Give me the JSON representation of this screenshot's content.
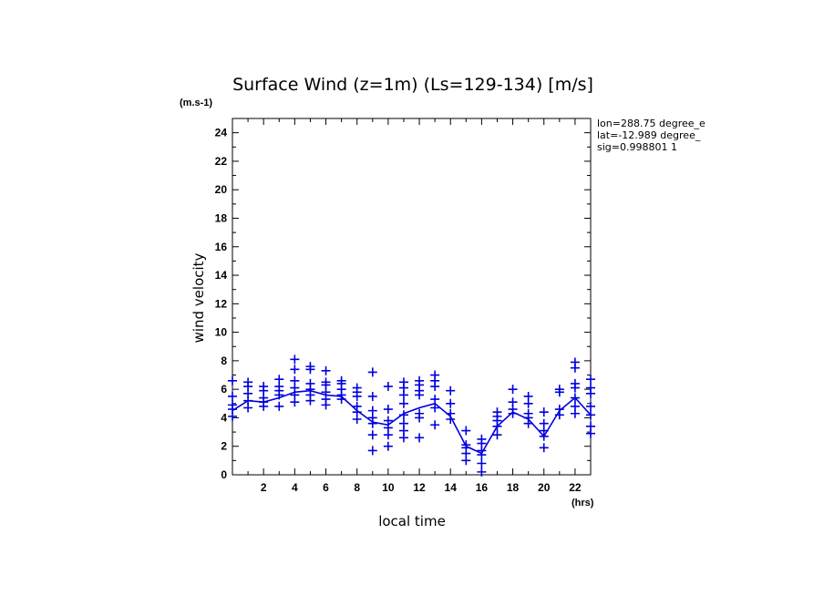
{
  "chart_data": {
    "type": "scatter",
    "title": "Surface Wind (z=1m) (Ls=129-134) [m/s]",
    "y_unit": "(m.s-1)",
    "x_unit": "(hrs)",
    "xlabel": "local time",
    "ylabel": "wind velocity",
    "xlim": [
      0,
      23
    ],
    "ylim": [
      0,
      25
    ],
    "x_ticks": [
      2,
      4,
      6,
      8,
      10,
      12,
      14,
      16,
      18,
      20,
      22
    ],
    "y_ticks": [
      0,
      2,
      4,
      6,
      8,
      10,
      12,
      14,
      16,
      18,
      20,
      22,
      24
    ],
    "info": [
      "lon=288.75 degree_e",
      "lat=-12.989 degree_",
      "sig=0.998801 1"
    ],
    "color": "#0000dd",
    "mean": [
      [
        0,
        4.5
      ],
      [
        1,
        5.2
      ],
      [
        2,
        5.1
      ],
      [
        3,
        5.4
      ],
      [
        4,
        5.8
      ],
      [
        5,
        5.9
      ],
      [
        6,
        5.6
      ],
      [
        7,
        5.5
      ],
      [
        8,
        4.5
      ],
      [
        9,
        3.7
      ],
      [
        10,
        3.5
      ],
      [
        11,
        4.3
      ],
      [
        12,
        4.7
      ],
      [
        13,
        5.0
      ],
      [
        14,
        4.1
      ],
      [
        15,
        2.0
      ],
      [
        16,
        1.5
      ],
      [
        17,
        3.4
      ],
      [
        18,
        4.4
      ],
      [
        19,
        3.9
      ],
      [
        20,
        2.7
      ],
      [
        21,
        4.5
      ],
      [
        22,
        5.4
      ],
      [
        23,
        4.2
      ]
    ],
    "points": [
      [
        0,
        [
          4.1,
          4.6,
          4.9,
          5.5,
          6.6
        ]
      ],
      [
        1,
        [
          4.7,
          5.2,
          5.7,
          6.2,
          6.5
        ]
      ],
      [
        2,
        [
          4.8,
          5.1,
          5.4,
          5.9,
          6.2
        ]
      ],
      [
        3,
        [
          4.8,
          5.6,
          5.9,
          6.2,
          6.7
        ]
      ],
      [
        4,
        [
          5.1,
          5.6,
          6.1,
          6.6,
          7.4,
          8.1
        ]
      ],
      [
        5,
        [
          5.2,
          5.6,
          6.0,
          6.4,
          7.4,
          7.6
        ]
      ],
      [
        6,
        [
          4.9,
          5.3,
          5.8,
          6.3,
          6.5,
          7.3
        ]
      ],
      [
        7,
        [
          5.3,
          5.6,
          6.0,
          6.4,
          6.6
        ]
      ],
      [
        8,
        [
          3.9,
          4.4,
          4.8,
          5.5,
          5.8,
          6.1
        ]
      ],
      [
        9,
        [
          1.7,
          2.8,
          3.6,
          4.0,
          4.5,
          5.5,
          7.2
        ]
      ],
      [
        10,
        [
          2.0,
          2.8,
          3.3,
          3.8,
          4.6,
          6.2
        ]
      ],
      [
        11,
        [
          2.6,
          3.1,
          3.6,
          4.2,
          5.0,
          5.6,
          6.1,
          6.5
        ]
      ],
      [
        12,
        [
          2.6,
          4.0,
          4.3,
          5.6,
          5.9,
          6.3,
          6.6
        ]
      ],
      [
        13,
        [
          3.5,
          4.7,
          5.3,
          6.2,
          6.6,
          7.0
        ]
      ],
      [
        14,
        [
          3.9,
          4.3,
          5.0,
          5.9
        ]
      ],
      [
        15,
        [
          1.0,
          1.5,
          1.9,
          2.1,
          3.1
        ]
      ],
      [
        16,
        [
          0.2,
          0.8,
          1.4,
          1.7,
          2.2,
          2.5
        ]
      ],
      [
        17,
        [
          2.8,
          3.4,
          3.8,
          4.1,
          4.4
        ]
      ],
      [
        18,
        [
          4.3,
          4.6,
          5.1,
          6.0
        ]
      ],
      [
        19,
        [
          3.6,
          4.0,
          4.3,
          5.0,
          5.5
        ]
      ],
      [
        20,
        [
          1.9,
          2.7,
          3.1,
          3.6,
          4.4
        ]
      ],
      [
        21,
        [
          4.2,
          4.6,
          5.8,
          6.0
        ]
      ],
      [
        22,
        [
          4.3,
          4.8,
          5.4,
          6.1,
          6.4,
          7.5,
          7.9
        ]
      ],
      [
        23,
        [
          2.9,
          3.4,
          4.2,
          4.8,
          5.7,
          6.1,
          6.7
        ]
      ]
    ]
  }
}
